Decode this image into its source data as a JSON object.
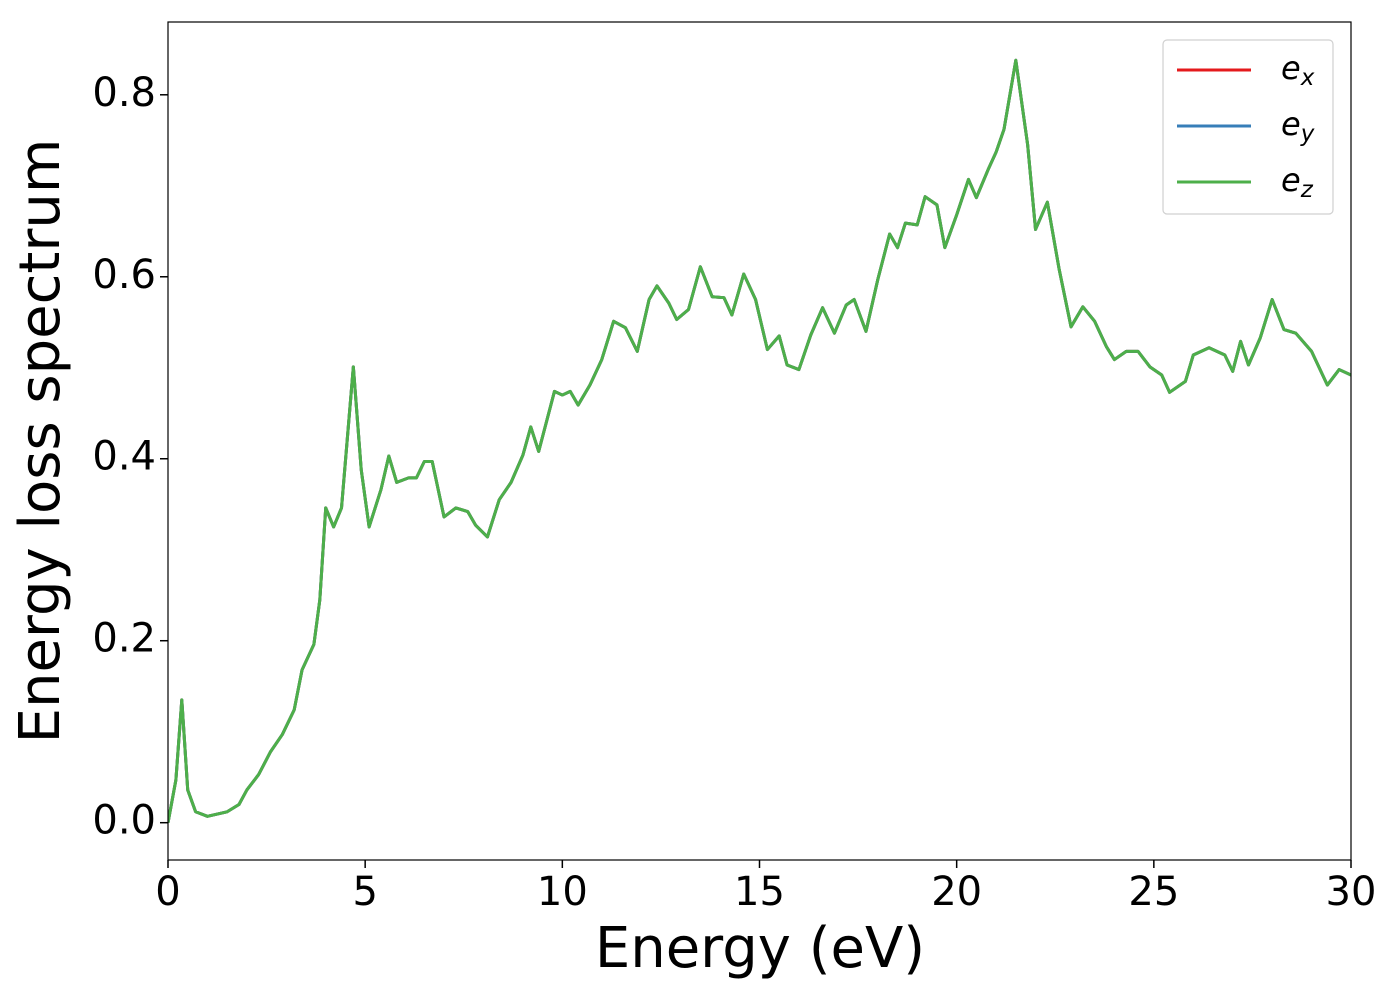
{
  "chart_data": {
    "type": "line",
    "xlabel": "Energy (eV)",
    "ylabel": "Energy loss spectrum",
    "xlim": [
      0,
      30
    ],
    "ylim": [
      -0.041,
      0.88
    ],
    "xticks": [
      0,
      5,
      10,
      15,
      20,
      25,
      30
    ],
    "yticks": [
      {
        "value": 0,
        "label": "0.0"
      },
      0.2,
      0.4,
      0.6,
      0.8
    ],
    "legend": "upper right",
    "x": [
      0,
      0.2,
      0.35,
      0.5,
      0.7,
      1.0,
      1.5,
      1.8,
      2.0,
      2.3,
      2.6,
      2.9,
      3.2,
      3.4,
      3.7,
      3.85,
      4.0,
      4.2,
      4.4,
      4.7,
      4.9,
      5.1,
      5.4,
      5.6,
      5.8,
      6.1,
      6.3,
      6.5,
      6.7,
      7.0,
      7.3,
      7.6,
      7.8,
      8.1,
      8.4,
      8.7,
      9.0,
      9.2,
      9.4,
      9.8,
      10.0,
      10.2,
      10.4,
      10.7,
      11.0,
      11.3,
      11.6,
      11.9,
      12.2,
      12.4,
      12.7,
      12.9,
      13.2,
      13.5,
      13.8,
      14.1,
      14.3,
      14.6,
      14.9,
      15.2,
      15.5,
      15.7,
      16.0,
      16.3,
      16.6,
      16.9,
      17.2,
      17.4,
      17.7,
      18.0,
      18.3,
      18.5,
      18.7,
      19.0,
      19.2,
      19.5,
      19.7,
      20.0,
      20.3,
      20.5,
      20.8,
      21.0,
      21.2,
      21.5,
      21.8,
      22.0,
      22.3,
      22.6,
      22.9,
      23.2,
      23.5,
      23.8,
      24.0,
      24.3,
      24.6,
      24.9,
      25.2,
      25.4,
      25.8,
      26.0,
      26.4,
      26.8,
      27.0,
      27.2,
      27.4,
      27.7,
      28.0,
      28.3,
      28.6,
      29.0,
      29.4,
      29.7,
      30.0
    ],
    "series": [
      {
        "name": "ex",
        "color": "#e41a1c",
        "values": [
          0,
          0.047,
          0.135,
          0.036,
          0.012,
          0.007,
          0.012,
          0.02,
          0.036,
          0.053,
          0.078,
          0.097,
          0.124,
          0.168,
          0.196,
          0.245,
          0.346,
          0.325,
          0.346,
          0.501,
          0.388,
          0.325,
          0.366,
          0.403,
          0.374,
          0.379,
          0.379,
          0.397,
          0.397,
          0.336,
          0.346,
          0.342,
          0.327,
          0.314,
          0.355,
          0.374,
          0.404,
          0.435,
          0.408,
          0.474,
          0.47,
          0.474,
          0.459,
          0.481,
          0.509,
          0.551,
          0.544,
          0.518,
          0.575,
          0.59,
          0.571,
          0.553,
          0.564,
          0.611,
          0.578,
          0.577,
          0.558,
          0.603,
          0.575,
          0.52,
          0.535,
          0.503,
          0.498,
          0.536,
          0.566,
          0.538,
          0.569,
          0.575,
          0.54,
          0.597,
          0.647,
          0.632,
          0.659,
          0.657,
          0.688,
          0.679,
          0.632,
          0.668,
          0.707,
          0.687,
          0.718,
          0.737,
          0.762,
          0.838,
          0.745,
          0.652,
          0.682,
          0.608,
          0.545,
          0.567,
          0.551,
          0.523,
          0.509,
          0.518,
          0.518,
          0.501,
          0.492,
          0.473,
          0.485,
          0.514,
          0.522,
          0.514,
          0.496,
          0.529,
          0.503,
          0.533,
          0.575,
          0.542,
          0.538,
          0.518,
          0.481,
          0.498,
          0.492
        ]
      },
      {
        "name": "ey",
        "color": "#377eb8",
        "values": [
          0,
          0.047,
          0.135,
          0.036,
          0.012,
          0.007,
          0.012,
          0.02,
          0.036,
          0.053,
          0.078,
          0.097,
          0.124,
          0.168,
          0.196,
          0.245,
          0.346,
          0.325,
          0.346,
          0.501,
          0.388,
          0.325,
          0.366,
          0.403,
          0.374,
          0.379,
          0.379,
          0.397,
          0.397,
          0.336,
          0.346,
          0.342,
          0.327,
          0.314,
          0.355,
          0.374,
          0.404,
          0.435,
          0.408,
          0.474,
          0.47,
          0.474,
          0.459,
          0.481,
          0.509,
          0.551,
          0.544,
          0.518,
          0.575,
          0.59,
          0.571,
          0.553,
          0.564,
          0.611,
          0.578,
          0.577,
          0.558,
          0.603,
          0.575,
          0.52,
          0.535,
          0.503,
          0.498,
          0.536,
          0.566,
          0.538,
          0.569,
          0.575,
          0.54,
          0.597,
          0.647,
          0.632,
          0.659,
          0.657,
          0.688,
          0.679,
          0.632,
          0.668,
          0.707,
          0.687,
          0.718,
          0.737,
          0.762,
          0.838,
          0.745,
          0.652,
          0.682,
          0.608,
          0.545,
          0.567,
          0.551,
          0.523,
          0.509,
          0.518,
          0.518,
          0.501,
          0.492,
          0.473,
          0.485,
          0.514,
          0.522,
          0.514,
          0.496,
          0.529,
          0.503,
          0.533,
          0.575,
          0.542,
          0.538,
          0.518,
          0.481,
          0.498,
          0.492
        ]
      },
      {
        "name": "ez",
        "color": "#4daf4a",
        "values": [
          0,
          0.047,
          0.135,
          0.036,
          0.012,
          0.007,
          0.012,
          0.02,
          0.036,
          0.053,
          0.078,
          0.097,
          0.124,
          0.168,
          0.196,
          0.245,
          0.346,
          0.325,
          0.346,
          0.501,
          0.388,
          0.325,
          0.366,
          0.403,
          0.374,
          0.379,
          0.379,
          0.397,
          0.397,
          0.336,
          0.346,
          0.342,
          0.327,
          0.314,
          0.355,
          0.374,
          0.404,
          0.435,
          0.408,
          0.474,
          0.47,
          0.474,
          0.459,
          0.481,
          0.509,
          0.551,
          0.544,
          0.518,
          0.575,
          0.59,
          0.571,
          0.553,
          0.564,
          0.611,
          0.578,
          0.577,
          0.558,
          0.603,
          0.575,
          0.52,
          0.535,
          0.503,
          0.498,
          0.536,
          0.566,
          0.538,
          0.569,
          0.575,
          0.54,
          0.597,
          0.647,
          0.632,
          0.659,
          0.657,
          0.688,
          0.679,
          0.632,
          0.668,
          0.707,
          0.687,
          0.718,
          0.737,
          0.762,
          0.838,
          0.745,
          0.652,
          0.682,
          0.608,
          0.545,
          0.567,
          0.551,
          0.523,
          0.509,
          0.518,
          0.518,
          0.501,
          0.492,
          0.473,
          0.485,
          0.514,
          0.522,
          0.514,
          0.496,
          0.529,
          0.503,
          0.533,
          0.575,
          0.542,
          0.538,
          0.518,
          0.481,
          0.498,
          0.492
        ]
      }
    ]
  }
}
